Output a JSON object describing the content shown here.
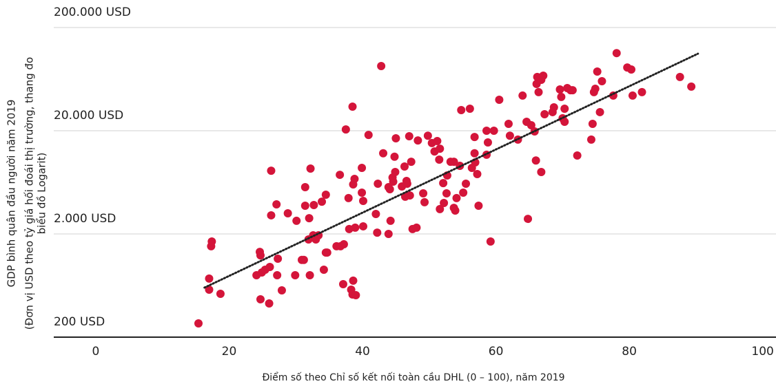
{
  "chart_data": {
    "type": "scatter",
    "ylabel": [
      "GDP bình quân đầu người năm 2019",
      "(Đơn vị USD theo tỷ giá hối đoái thị trường, thang đo",
      "biểu đồ Logarit)"
    ],
    "xlabel": "Điểm số theo Chỉ số kết nối toàn cầu DHL (0 – 100), năm 2019",
    "yscale": "log",
    "grid": true,
    "color": "#d4153a",
    "xlim": [
      -6.3,
      102
    ],
    "ylim": [
      200,
      200000
    ],
    "xticks": [
      0,
      20,
      40,
      60,
      80,
      100
    ],
    "yticks": [
      {
        "value": 200,
        "label": "200 USD"
      },
      {
        "value": 2000,
        "label": "2.000 USD"
      },
      {
        "value": 20000,
        "label": "20.000 USD"
      },
      {
        "value": 200000,
        "label": "200.000 USD"
      }
    ],
    "x": [
      15.4,
      17.3,
      17.4,
      17.0,
      17.0,
      18.7,
      24.1,
      24.6,
      24.7,
      24.9,
      25.4,
      26.1,
      24.7,
      26.0,
      26.3,
      26.3,
      27.1,
      27.3,
      27.2,
      27.9,
      28.8,
      29.9,
      30.1,
      30.9,
      31.2,
      31.4,
      31.4,
      32.0,
      31.9,
      32.2,
      32.1,
      32.7,
      32.6,
      33.0,
      33.4,
      33.9,
      34.2,
      34.5,
      34.7,
      34.5,
      36.1,
      36.7,
      36.6,
      37.1,
      37.2,
      37.5,
      37.9,
      38.0,
      38.3,
      38.5,
      38.6,
      38.5,
      38.6,
      39.0,
      38.9,
      38.8,
      39.9,
      40.1,
      40.1,
      39.9,
      40.9,
      42.0,
      42.2,
      42.3,
      42.8,
      43.1,
      43.9,
      44.2,
      44.1,
      43.9,
      44.6,
      44.5,
      44.8,
      44.9,
      45.0,
      45.9,
      46.3,
      46.6,
      46.4,
      46.7,
      47.0,
      47.3,
      47.1,
      47.5,
      48.1,
      48.3,
      49.1,
      49.3,
      49.8,
      50.4,
      50.8,
      51.2,
      51.6,
      51.5,
      51.6,
      52.2,
      52.1,
      52.6,
      52.7,
      53.2,
      53.7,
      53.7,
      53.9,
      54.1,
      54.6,
      54.8,
      55.5,
      55.1,
      56.1,
      56.4,
      56.8,
      56.8,
      57.2,
      57.4,
      56.9,
      58.6,
      58.8,
      58.6,
      59.2,
      59.7,
      60.5,
      61.9,
      62.1,
      63.3,
      64.0,
      64.6,
      64.8,
      65.3,
      65.8,
      66.0,
      66.1,
      66.2,
      66.4,
      66.8,
      67.1,
      66.8,
      67.3,
      68.5,
      68.7,
      69.6,
      69.8,
      70.0,
      70.3,
      70.3,
      70.7,
      71.2,
      71.5,
      72.2,
      74.3,
      74.5,
      74.7,
      74.9,
      75.2,
      75.6,
      75.9,
      77.6,
      78.1,
      79.7,
      80.3,
      80.5,
      81.9,
      87.6,
      89.3
    ],
    "values": [
      272,
      1520,
      1690,
      739,
      577,
      526,
      796,
      1340,
      1240,
      847,
      900,
      957,
      465,
      424,
      8200,
      3030,
      3870,
      1150,
      796,
      568,
      3170,
      796,
      2680,
      1120,
      1120,
      5680,
      3750,
      2840,
      1770,
      8600,
      796,
      3810,
      1940,
      1770,
      1940,
      4110,
      900,
      1320,
      1320,
      4800,
      1520,
      1520,
      7480,
      652,
      1590,
      20600,
      4450,
      2230,
      577,
      518,
      705,
      34200,
      6040,
      510,
      2300,
      6830,
      5020,
      4180,
      2370,
      8730,
      18200,
      3120,
      2060,
      6130,
      84700,
      12100,
      2000,
      2680,
      5420,
      5680,
      6420,
      7040,
      11200,
      7960,
      16900,
      5770,
      9000,
      6520,
      4590,
      6130,
      17700,
      10000,
      4720,
      2230,
      2300,
      16100,
      4950,
      4060,
      17900,
      15200,
      12600,
      15900,
      13400,
      10500,
      3480,
      3990,
      6220,
      4950,
      7370,
      10000,
      10000,
      3580,
      3370,
      4450,
      9140,
      31700,
      6130,
      5020,
      32700,
      8730,
      17400,
      12100,
      7600,
      3750,
      9870,
      20000,
      15400,
      11700,
      1690,
      20000,
      39900,
      23300,
      17900,
      16400,
      43800,
      24400,
      2800,
      22600,
      19700,
      10300,
      56800,
      66300,
      47300,
      7960,
      68300,
      62300,
      28900,
      30300,
      33700,
      50200,
      42500,
      26400,
      24400,
      32700,
      51800,
      49400,
      49400,
      11500,
      16400,
      23300,
      47300,
      51000,
      74900,
      30300,
      60400,
      43800,
      113000,
      82000,
      78400,
      43800,
      47300,
      66300,
      53500
    ],
    "trendline": {
      "x": [
        16.3,
        90.3
      ],
      "values": [
        604,
        111600
      ],
      "color": "#222222"
    }
  }
}
